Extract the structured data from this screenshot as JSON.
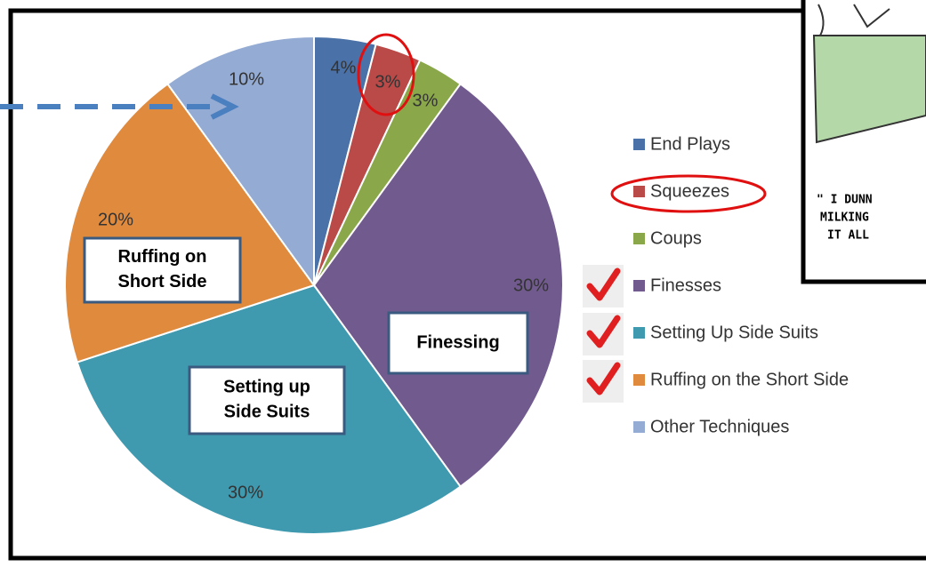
{
  "chart_data": {
    "type": "pie",
    "categories": [
      "End Plays",
      "Squeezes",
      "Coups",
      "Finesses",
      "Setting Up Side Suits",
      "Ruffing on the Short Side",
      "Other Techniques"
    ],
    "values": [
      4,
      3,
      3,
      30,
      30,
      20,
      10
    ],
    "value_labels": [
      "4%",
      "3%",
      "3%",
      "30%",
      "30%",
      "20%",
      "10%"
    ],
    "colors": [
      "#4a72a8",
      "#b94a48",
      "#8aa84a",
      "#715a8e",
      "#3f9ab0",
      "#e08a3e",
      "#94abd4"
    ],
    "legend": "right",
    "annotations": [
      "Ruffing on Short Side",
      "Finessing",
      "Setting up Side Suits"
    ]
  },
  "comic": {
    "caption": [
      "\" I DUNN",
      "MILKING",
      "IT ALL"
    ]
  }
}
